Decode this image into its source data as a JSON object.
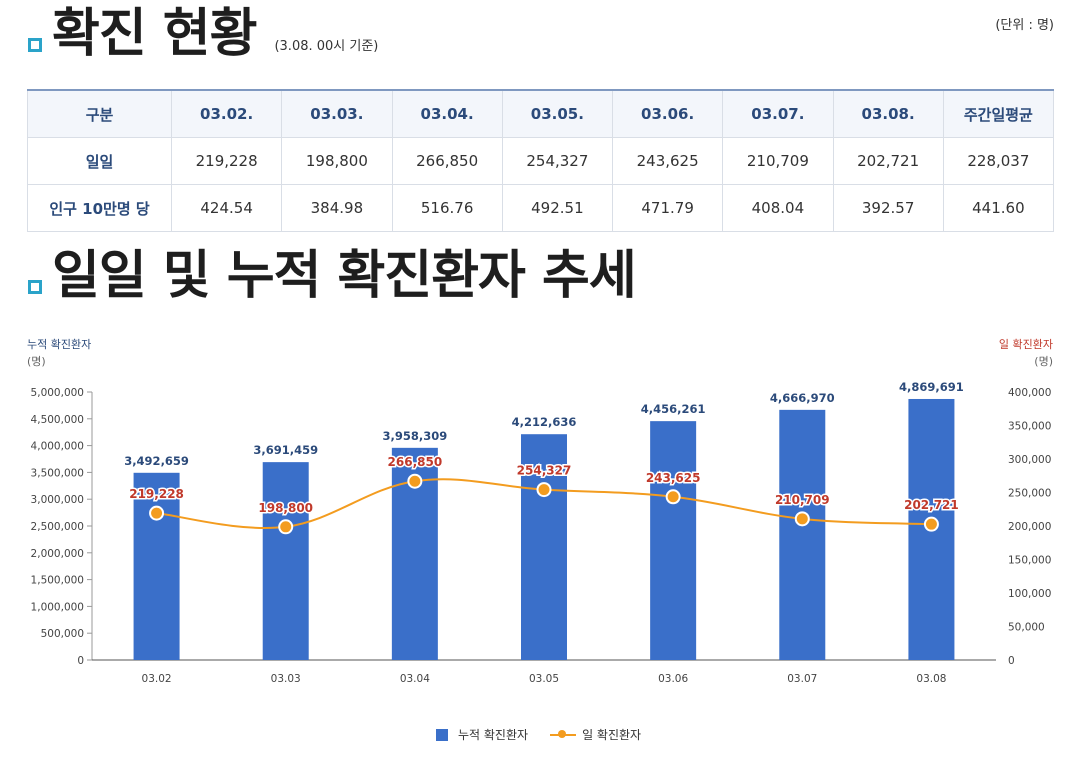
{
  "unit_note": "(단위 : 명)",
  "section1": {
    "title": "확진 현황",
    "note": "(3.08. 00시 기준)"
  },
  "section2": {
    "title": "일일 및 누적 확진환자 추세"
  },
  "table": {
    "headers": [
      "구분",
      "03.02.",
      "03.03.",
      "03.04.",
      "03.05.",
      "03.06.",
      "03.07.",
      "03.08.",
      "주간일평균"
    ],
    "rows": [
      {
        "label": "일일",
        "values": [
          "219,228",
          "198,800",
          "266,850",
          "254,327",
          "243,625",
          "210,709",
          "202,721",
          "228,037"
        ]
      },
      {
        "label": "인구 10만명 당",
        "values": [
          "424.54",
          "384.98",
          "516.76",
          "492.51",
          "471.79",
          "408.04",
          "392.57",
          "441.60"
        ]
      }
    ]
  },
  "chart_data": {
    "type": "bar",
    "categories": [
      "03.02",
      "03.03",
      "03.04",
      "03.05",
      "03.06",
      "03.07",
      "03.08"
    ],
    "series": [
      {
        "name": "누적 확진환자",
        "type": "bar",
        "axis": "left",
        "values": [
          3492659,
          3691459,
          3958309,
          4212636,
          4456261,
          4666970,
          4869691
        ]
      },
      {
        "name": "일 확진환자",
        "type": "line",
        "axis": "right",
        "values": [
          219228,
          198800,
          266850,
          254327,
          243625,
          210709,
          202721
        ]
      }
    ],
    "left_axis": {
      "label": "누적 확진환자",
      "unit": "(명)",
      "ylim": [
        0,
        5000000
      ],
      "ticks": [
        0,
        500000,
        1000000,
        1500000,
        2000000,
        2500000,
        3000000,
        3500000,
        4000000,
        4500000,
        5000000
      ]
    },
    "right_axis": {
      "label": "일 확진환자",
      "unit": "(명)",
      "ylim": [
        0,
        400000
      ],
      "ticks": [
        0,
        50000,
        100000,
        150000,
        200000,
        250000,
        300000,
        350000,
        400000
      ]
    },
    "legend_position": "bottom",
    "grid": false
  },
  "colors": {
    "bar": "#3a6fc9",
    "bar_label": "#2b4a7a",
    "line": "#f39c1f",
    "line_label": "#c0392b",
    "left_axis_label": "#2b4a7a",
    "right_axis_label": "#c0392b",
    "accent_bullet": "#2aa3c9"
  }
}
